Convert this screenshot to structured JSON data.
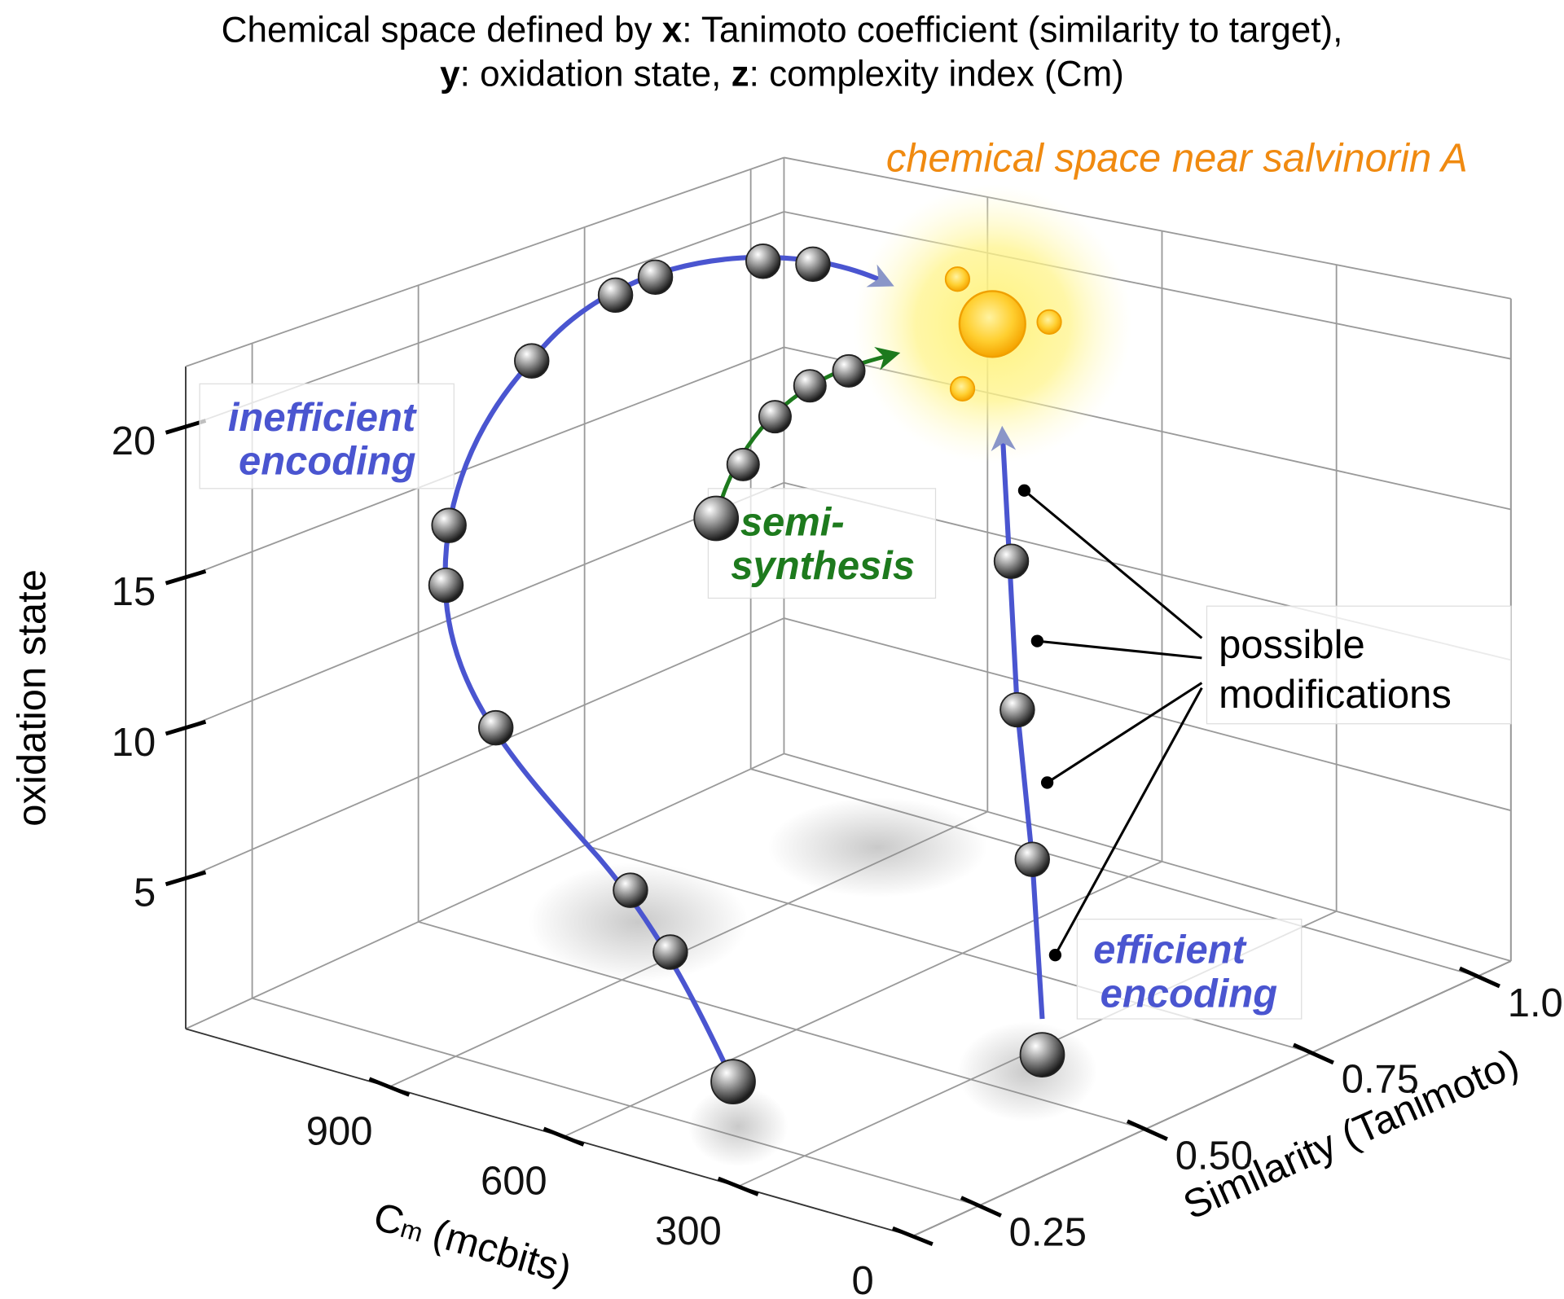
{
  "chart_data": {
    "type": "scatter3d",
    "title": [
      [
        {
          "text": "Chemical space defined by ",
          "bold": false
        },
        {
          "text": "x",
          "bold": true
        },
        {
          "text": ": Tanimoto coefficient (similarity to target),",
          "bold": false
        }
      ],
      [
        {
          "text": "y",
          "bold": true
        },
        {
          "text": ": oxidation state, ",
          "bold": false
        },
        {
          "text": "z",
          "bold": true
        },
        {
          "text": ": complexity index (Cm)",
          "bold": false
        }
      ]
    ],
    "ylabel": "oxidation state",
    "xlabel": {
      "main": "C",
      "sub": "m",
      "rest": " (mcbits)"
    },
    "zlabel": "Similarity (Tanimoto)",
    "ylim": [
      0,
      22
    ],
    "yticks": [
      5,
      10,
      15,
      20
    ],
    "xlim": [
      0,
      1250
    ],
    "xticks": [
      0,
      300,
      600,
      900
    ],
    "zlim": [
      0.15,
      1.05
    ],
    "zticks": [
      0.25,
      {
        "value": 0.5,
        "label": "0.50"
      },
      0.75,
      {
        "value": 1,
        "label": "1.0"
      }
    ],
    "grid": true,
    "annotations": {
      "target": "chemical space near salvinorin A",
      "inefficient": [
        "inefficient",
        "encoding"
      ],
      "semi": [
        "semi-",
        "synthesis"
      ],
      "modifications": [
        "possible",
        "modifications"
      ],
      "efficient": [
        "efficient",
        "encoding"
      ]
    }
  }
}
